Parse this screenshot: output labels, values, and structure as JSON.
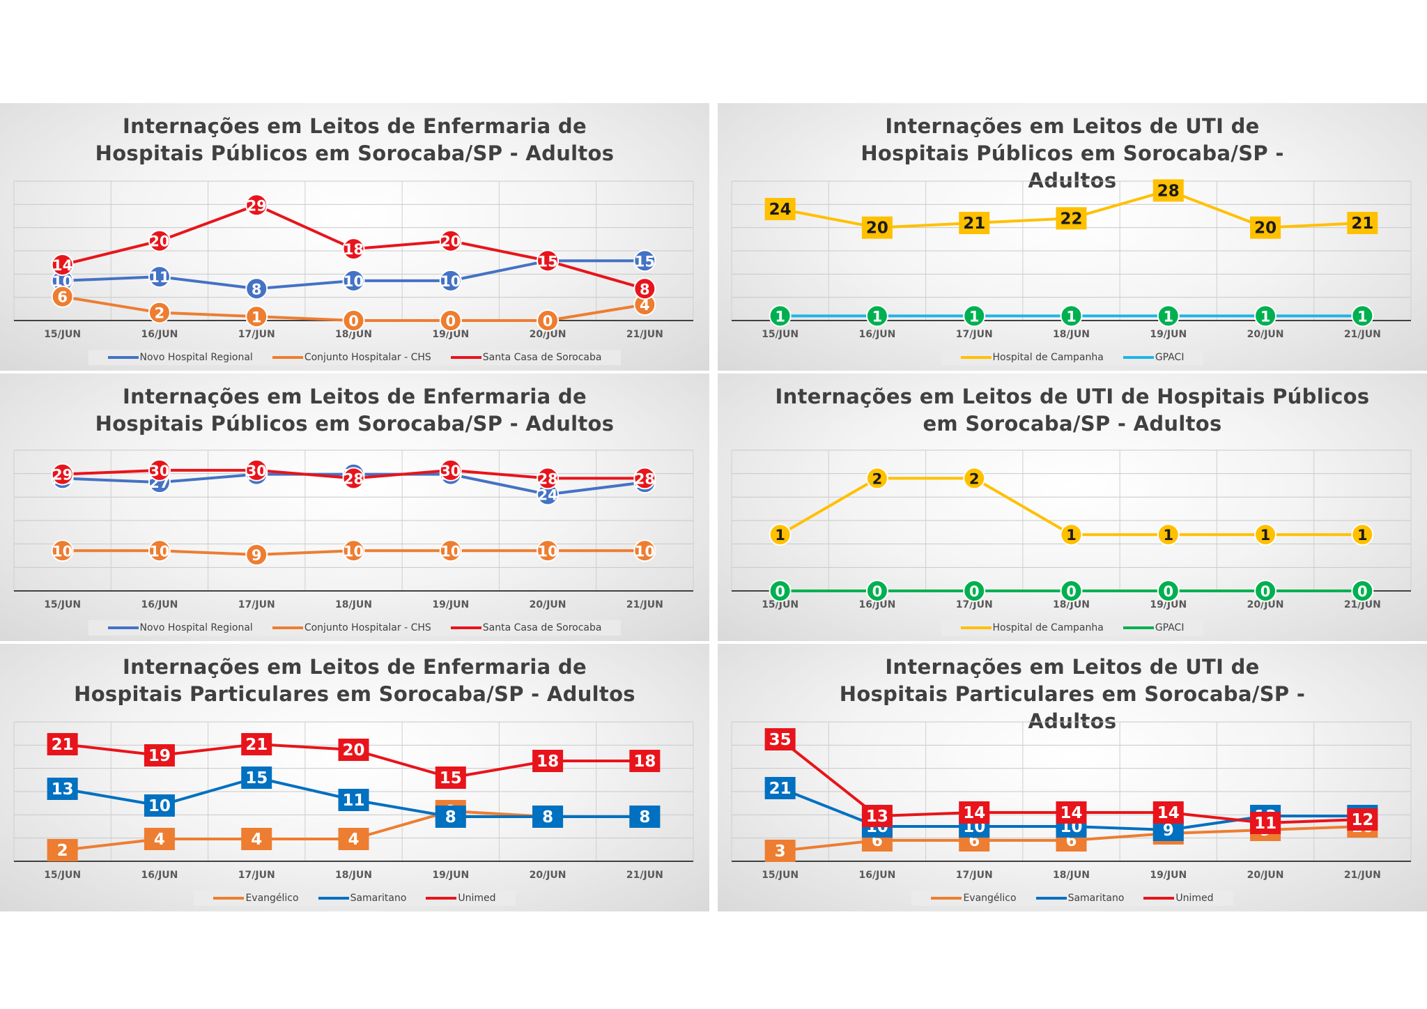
{
  "colors": {
    "blue": "#4472C4",
    "orange": "#ED7D31",
    "red": "#E8141B",
    "yellow": "#FFC000",
    "cyan": "#1FB4E6",
    "green": "#00B050",
    "steel_blue": "#0070C0"
  },
  "chart_data": [
    {
      "type": "line",
      "title": "Internações em Leitos de Enfermaria de Hospitais Públicos em Sorocaba/SP - Adultos",
      "categories": [
        "15/JUN",
        "16/JUN",
        "17/JUN",
        "18/JUN",
        "19/JUN",
        "20/JUN",
        "21/JUN"
      ],
      "ylim": [
        0,
        35
      ],
      "marker": "circle",
      "legend": "bottom",
      "series": [
        {
          "name": "Novo Hospital Regional",
          "color": "#4472C4",
          "values": [
            10,
            11,
            8,
            10,
            10,
            15,
            15
          ]
        },
        {
          "name": "Conjunto Hospitalar - CHS",
          "color": "#ED7D31",
          "values": [
            6,
            2,
            1,
            0,
            0,
            0,
            4
          ]
        },
        {
          "name": "Santa Casa de Sorocaba",
          "color": "#E8141B",
          "values": [
            14,
            20,
            29,
            18,
            20,
            15,
            8
          ]
        }
      ]
    },
    {
      "type": "line",
      "title": "Internações em Leitos de UTI de Hospitais Públicos em Sorocaba/SP - Adultos",
      "categories": [
        "15/JUN",
        "16/JUN",
        "17/JUN",
        "18/JUN",
        "19/JUN",
        "20/JUN",
        "21/JUN"
      ],
      "ylim": [
        0,
        30
      ],
      "legend": "bottom",
      "series": [
        {
          "name": "Hospital de Campanha",
          "color": "#FFC000",
          "marker": "square",
          "values": [
            24,
            20,
            21,
            22,
            28,
            20,
            21
          ]
        },
        {
          "name": "GPACI",
          "color": "#1FB4E6",
          "marker": "circle",
          "marker_color": "#00B050",
          "values": [
            1,
            1,
            1,
            1,
            1,
            1,
            1
          ]
        }
      ]
    },
    {
      "type": "line",
      "title": "Internações em Leitos de Enfermaria de Hospitais Públicos em Sorocaba/SP - Adultos",
      "categories": [
        "15/JUN",
        "16/JUN",
        "17/JUN",
        "18/JUN",
        "19/JUN",
        "20/JUN",
        "21/JUN"
      ],
      "ylim": [
        0,
        35
      ],
      "marker": "circle",
      "legend": "bottom",
      "series": [
        {
          "name": "Novo Hospital Regional",
          "color": "#4472C4",
          "values": [
            28,
            27,
            29,
            29,
            29,
            24,
            27
          ]
        },
        {
          "name": "Conjunto Hospitalar - CHS",
          "color": "#ED7D31",
          "values": [
            10,
            10,
            9,
            10,
            10,
            10,
            10
          ]
        },
        {
          "name": "Santa Casa de Sorocaba",
          "color": "#E8141B",
          "values": [
            29,
            30,
            30,
            28,
            30,
            28,
            28
          ]
        }
      ]
    },
    {
      "type": "line",
      "title": "Internações em Leitos de UTI de Hospitais Públicos em Sorocaba/SP - Adultos",
      "categories": [
        "15/JUN",
        "16/JUN",
        "17/JUN",
        "18/JUN",
        "19/JUN",
        "20/JUN",
        "21/JUN"
      ],
      "ylim": [
        0,
        2.5
      ],
      "marker": "circle",
      "legend": "bottom",
      "series": [
        {
          "name": "Hospital de Campanha",
          "color": "#FFC000",
          "values": [
            1,
            2,
            2,
            1,
            1,
            1,
            1
          ]
        },
        {
          "name": "GPACI",
          "color": "#00B050",
          "values": [
            0,
            0,
            0,
            0,
            0,
            0,
            0
          ]
        }
      ]
    },
    {
      "type": "line",
      "title": "Internações em Leitos de Enfermaria de Hospitais Particulares em Sorocaba/SP - Adultos",
      "categories": [
        "15/JUN",
        "16/JUN",
        "17/JUN",
        "18/JUN",
        "19/JUN",
        "20/JUN",
        "21/JUN"
      ],
      "ylim": [
        0,
        25
      ],
      "marker": "square",
      "legend": "bottom",
      "series": [
        {
          "name": "Evangélico",
          "color": "#ED7D31",
          "values": [
            2,
            4,
            4,
            4,
            9,
            8,
            8
          ]
        },
        {
          "name": "Samaritano",
          "color": "#0070C0",
          "values": [
            13,
            10,
            15,
            11,
            8,
            8,
            8
          ]
        },
        {
          "name": "Unimed",
          "color": "#E8141B",
          "values": [
            21,
            19,
            21,
            20,
            15,
            18,
            18
          ]
        }
      ]
    },
    {
      "type": "line",
      "title": "Internações em Leitos de UTI de Hospitais Particulares em Sorocaba/SP - Adultos",
      "categories": [
        "15/JUN",
        "16/JUN",
        "17/JUN",
        "18/JUN",
        "19/JUN",
        "20/JUN",
        "21/JUN"
      ],
      "ylim": [
        0,
        40
      ],
      "marker": "square",
      "legend": "bottom",
      "series": [
        {
          "name": "Evangélico",
          "color": "#ED7D31",
          "values": [
            3,
            6,
            6,
            6,
            8,
            9,
            10
          ]
        },
        {
          "name": "Samaritano",
          "color": "#0070C0",
          "values": [
            21,
            10,
            10,
            10,
            9,
            13,
            13
          ]
        },
        {
          "name": "Unimed",
          "color": "#E8141B",
          "values": [
            35,
            13,
            14,
            14,
            14,
            11,
            12
          ]
        }
      ]
    }
  ]
}
